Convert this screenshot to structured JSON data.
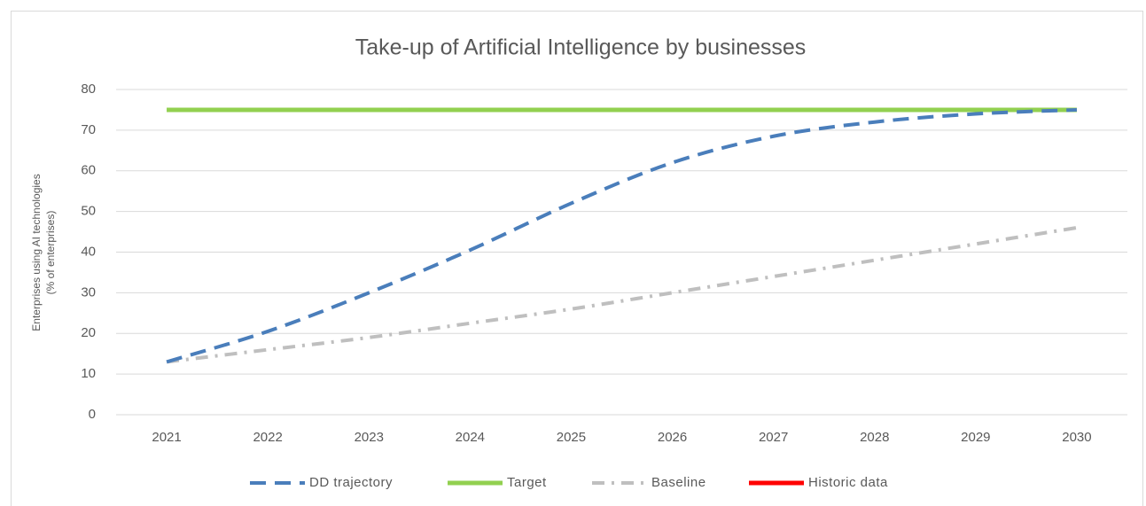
{
  "chart_data": {
    "type": "line",
    "title": "Take-up of Artificial Intelligence by businesses",
    "y_label": [
      "Enterprises using AI technologies",
      "(% of enterprises)"
    ],
    "categories": [
      "2021",
      "2022",
      "2023",
      "2024",
      "2025",
      "2026",
      "2027",
      "2028",
      "2029",
      "2030"
    ],
    "series": [
      {
        "name": "DD trajectory",
        "color": "#4a7ebb",
        "style": "dashed",
        "values": [
          13,
          20.5,
          30,
          40.5,
          52,
          62,
          68.5,
          72,
          74,
          75
        ]
      },
      {
        "name": "Target",
        "color": "#92d050",
        "style": "solid",
        "values": [
          75,
          75,
          75,
          75,
          75,
          75,
          75,
          75,
          75,
          75
        ]
      },
      {
        "name": "Baseline",
        "color": "#bfbfbf",
        "style": "dashdot",
        "values": [
          13,
          16,
          19,
          22.5,
          26,
          30,
          34,
          38,
          42,
          46
        ]
      },
      {
        "name": "Historic data",
        "color": "#ff0000",
        "style": "solid",
        "values": [
          null,
          null,
          null,
          null,
          null,
          null,
          null,
          null,
          null,
          null
        ]
      }
    ],
    "ylim": [
      0,
      80
    ],
    "yticks": [
      0,
      10,
      20,
      30,
      40,
      50,
      60,
      70,
      80
    ],
    "grid": true,
    "legend": "bottom"
  }
}
